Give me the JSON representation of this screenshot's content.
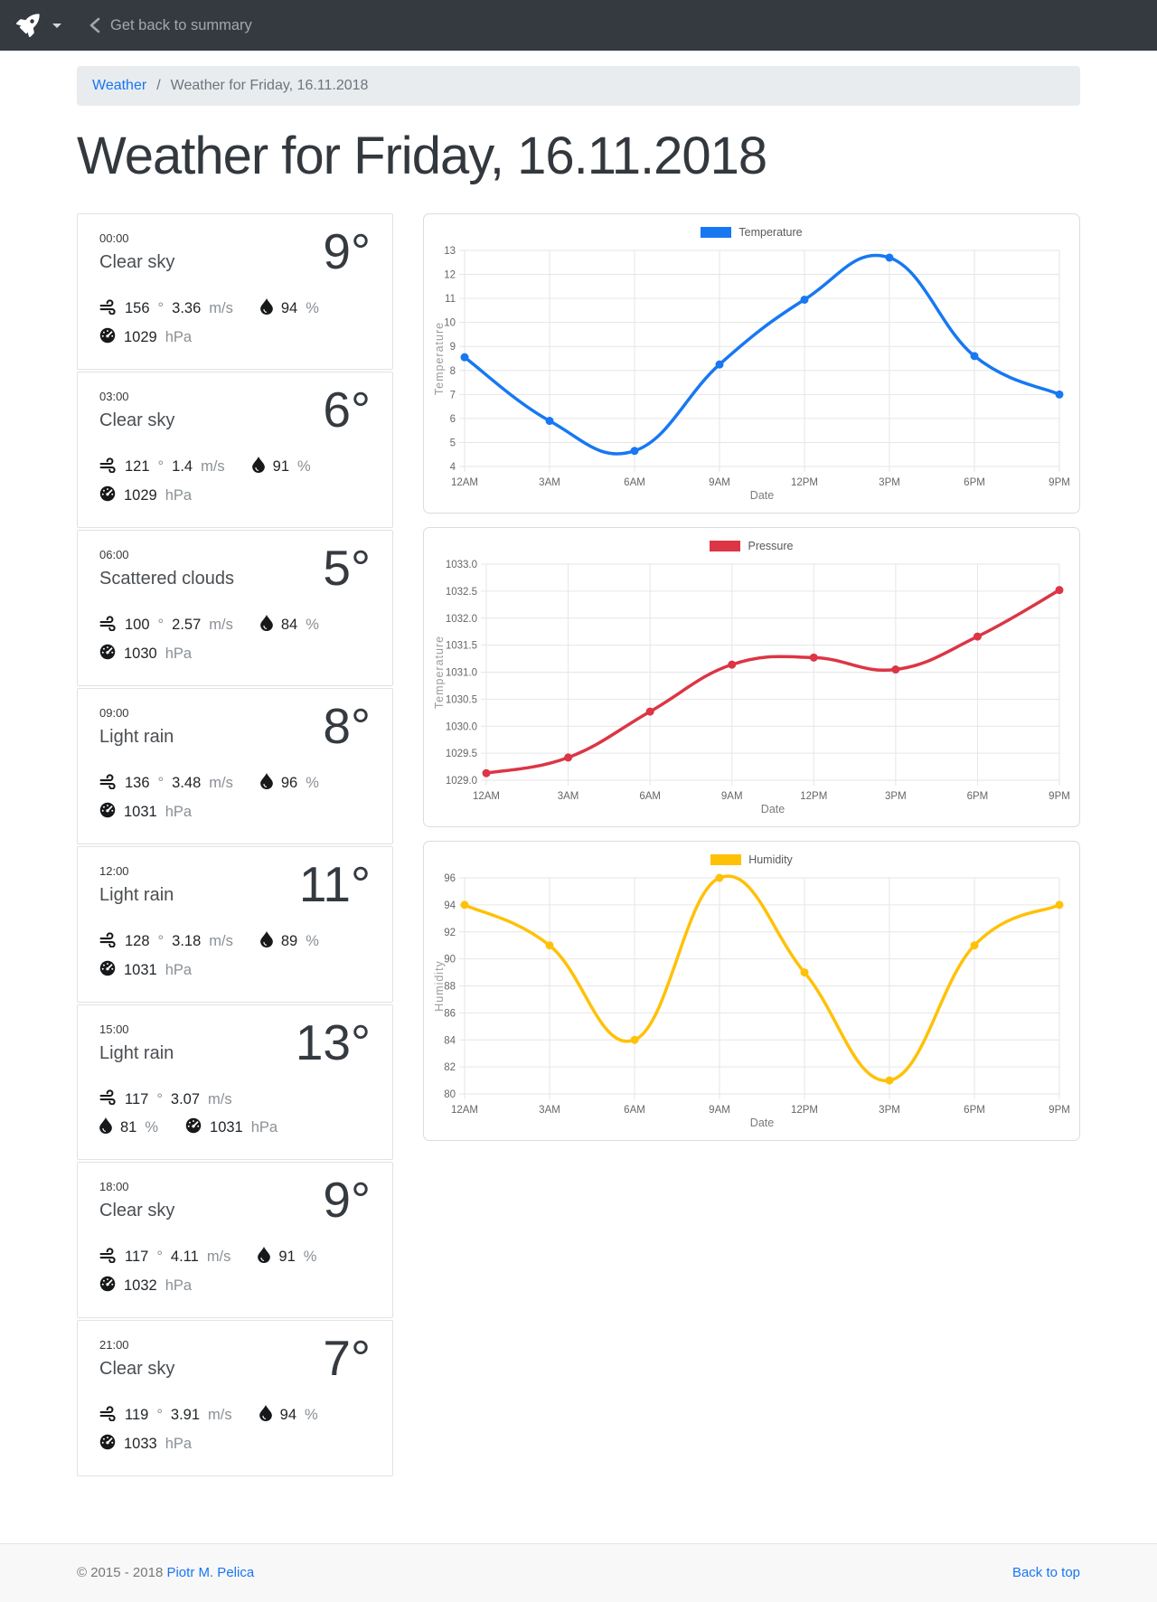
{
  "navbar": {
    "back_label": "Get back to summary"
  },
  "breadcrumb": {
    "link": "Weather",
    "separator": "/",
    "current": "Weather for Friday, 16.11.2018"
  },
  "page": {
    "title": "Weather for Friday, 16.11.2018"
  },
  "units": {
    "degree": "°",
    "speed": "m/s",
    "humidity": "%",
    "pressure": "hPa"
  },
  "cards": [
    {
      "time": "00:00",
      "condition": "Clear sky",
      "temp": "9°",
      "wind_deg": "156",
      "wind_speed": "3.36",
      "humidity": "94",
      "pressure": "1029"
    },
    {
      "time": "03:00",
      "condition": "Clear sky",
      "temp": "6°",
      "wind_deg": "121",
      "wind_speed": "1.4",
      "humidity": "91",
      "pressure": "1029"
    },
    {
      "time": "06:00",
      "condition": "Scattered clouds",
      "temp": "5°",
      "wind_deg": "100",
      "wind_speed": "2.57",
      "humidity": "84",
      "pressure": "1030"
    },
    {
      "time": "09:00",
      "condition": "Light rain",
      "temp": "8°",
      "wind_deg": "136",
      "wind_speed": "3.48",
      "humidity": "96",
      "pressure": "1031"
    },
    {
      "time": "12:00",
      "condition": "Light rain",
      "temp": "11°",
      "wind_deg": "128",
      "wind_speed": "3.18",
      "humidity": "89",
      "pressure": "1031"
    },
    {
      "time": "15:00",
      "condition": "Light rain",
      "temp": "13°",
      "wind_deg": "117",
      "wind_speed": "3.07",
      "humidity": "81",
      "pressure": "1031"
    },
    {
      "time": "18:00",
      "condition": "Clear sky",
      "temp": "9°",
      "wind_deg": "117",
      "wind_speed": "4.11",
      "humidity": "91",
      "pressure": "1032"
    },
    {
      "time": "21:00",
      "condition": "Clear sky",
      "temp": "7°",
      "wind_deg": "119",
      "wind_speed": "3.91",
      "humidity": "94",
      "pressure": "1033"
    }
  ],
  "chart_data": [
    {
      "type": "line",
      "legend": "Temperature",
      "color": "#1778f2",
      "categories": [
        "12AM",
        "3AM",
        "6AM",
        "9AM",
        "12PM",
        "3PM",
        "6PM",
        "9PM"
      ],
      "values": [
        8.55,
        5.9,
        4.65,
        8.25,
        10.95,
        12.7,
        8.6,
        7.0
      ],
      "xlabel": "Date",
      "ylabel": "Temperature",
      "ylim": [
        4,
        13
      ],
      "ytick_step": 1,
      "ydecimals": 0,
      "grid": true,
      "legend_position": "top"
    },
    {
      "type": "line",
      "legend": "Pressure",
      "color": "#dc3545",
      "categories": [
        "12AM",
        "3AM",
        "6AM",
        "9AM",
        "12PM",
        "3PM",
        "6PM",
        "9PM"
      ],
      "values": [
        1029.13,
        1029.42,
        1030.27,
        1031.14,
        1031.27,
        1031.05,
        1031.66,
        1032.52
      ],
      "xlabel": "Date",
      "ylabel": "Temperature",
      "ylim": [
        1029.0,
        1033.0
      ],
      "ytick_step": 0.5,
      "ydecimals": 1,
      "grid": true,
      "legend_position": "top"
    },
    {
      "type": "line",
      "legend": "Humidity",
      "color": "#ffc107",
      "categories": [
        "12AM",
        "3AM",
        "6AM",
        "9AM",
        "12PM",
        "3PM",
        "6PM",
        "9PM"
      ],
      "values": [
        94,
        91,
        84,
        96,
        89,
        81,
        91,
        94
      ],
      "xlabel": "Date",
      "ylabel": "Humidity",
      "ylim": [
        80,
        96
      ],
      "ytick_step": 2,
      "ydecimals": 0,
      "grid": true,
      "legend_position": "top"
    }
  ],
  "footer": {
    "copyright_prefix": "© 2015 - 2018",
    "author": "Piotr M. Pelica",
    "back_to_top": "Back to top"
  }
}
